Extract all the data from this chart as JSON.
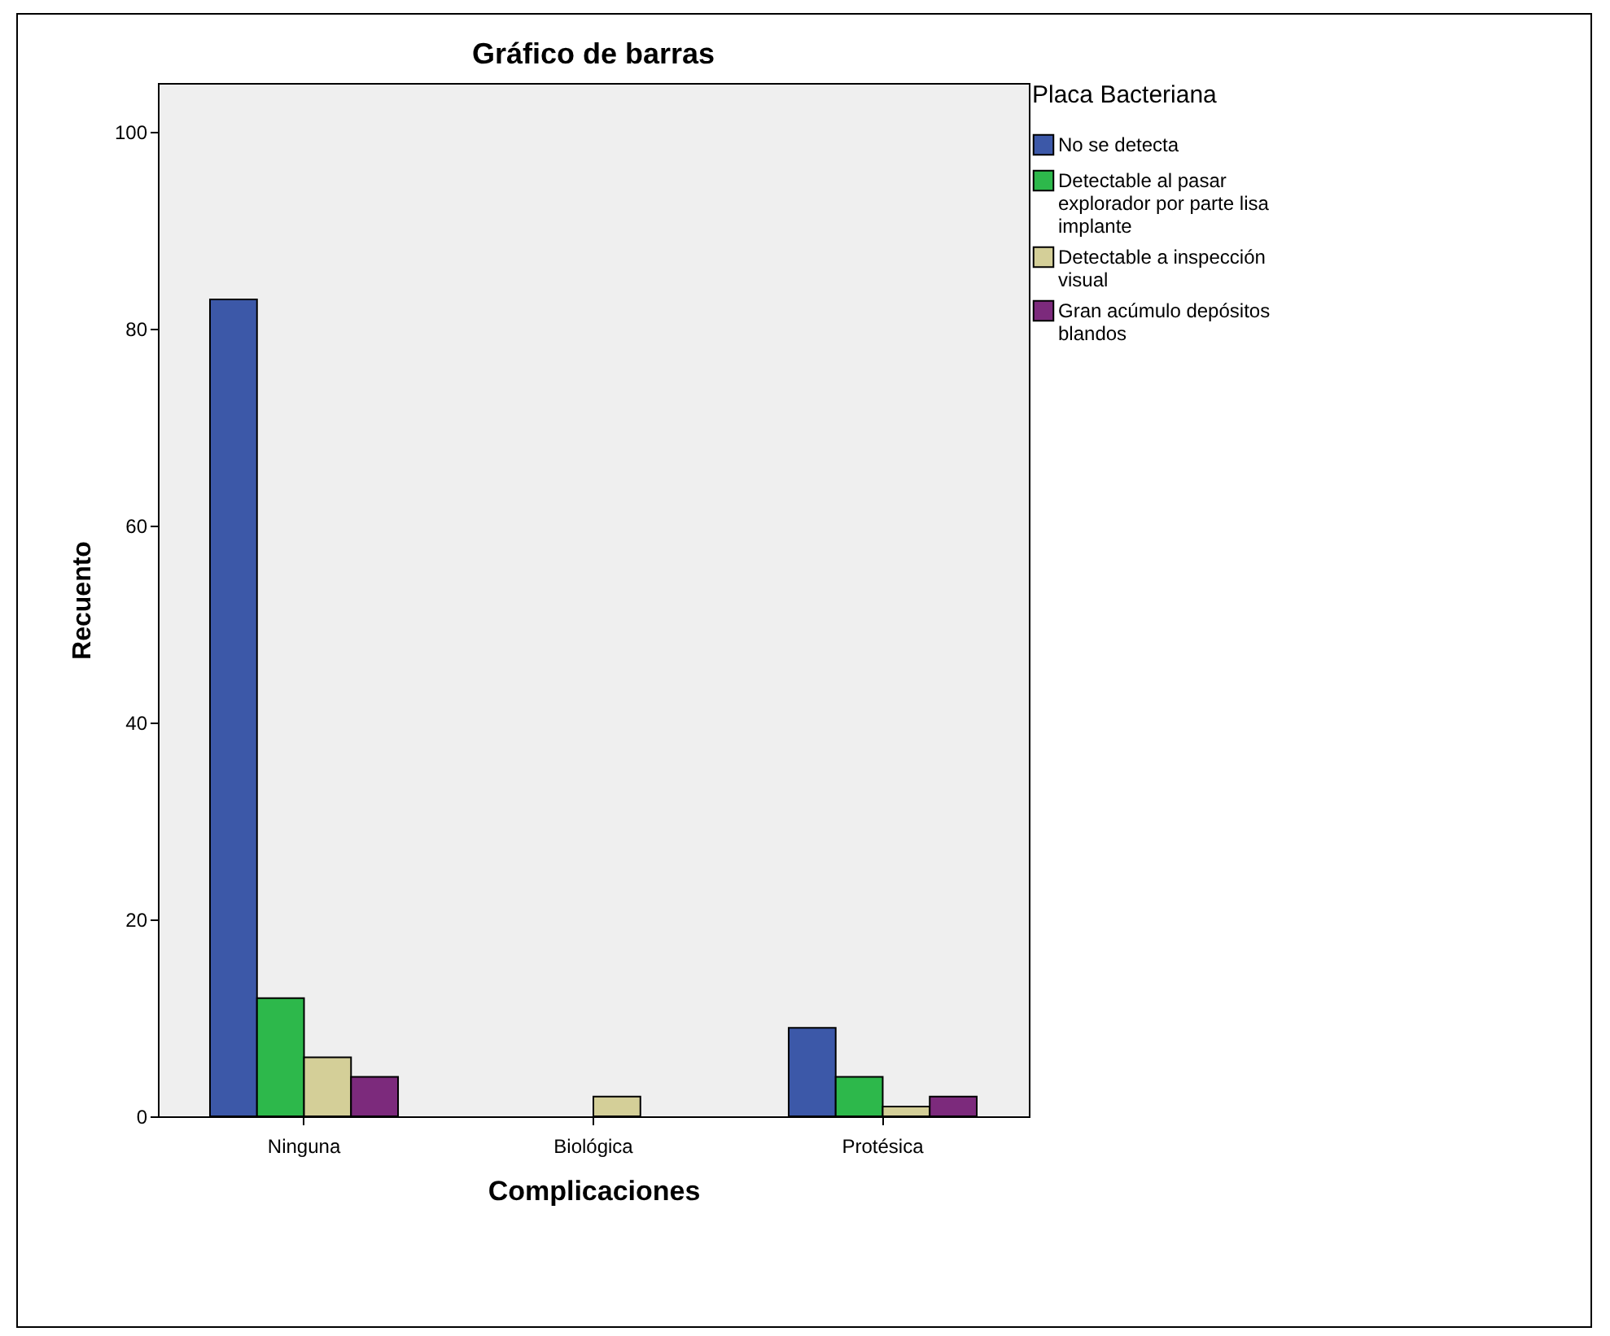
{
  "chart_data": {
    "type": "bar",
    "title": "Gráfico de barras",
    "xlabel": "Complicaciones",
    "ylabel": "Recuento",
    "legend_title": "Placa Bacteriana",
    "legend": "right",
    "categories": [
      "Ninguna",
      "Biológica",
      "Protésica"
    ],
    "series": [
      {
        "name": "No se detecta",
        "color": "#3c58a8",
        "values": [
          83,
          null,
          9
        ]
      },
      {
        "name": "Detectable al pasar explorador por parte lisa implante",
        "color": "#2db84b",
        "values": [
          12,
          null,
          4
        ]
      },
      {
        "name": "Detectable a inspección visual",
        "color": "#d4cf98",
        "values": [
          6,
          2,
          1
        ]
      },
      {
        "name": "Gran acúmulo depósitos blandos",
        "color": "#7c2a7c",
        "values": [
          4,
          null,
          2
        ]
      }
    ],
    "ylim": [
      0,
      105
    ],
    "yticks": [
      0,
      20,
      40,
      60,
      80,
      100
    ],
    "grid": false
  }
}
